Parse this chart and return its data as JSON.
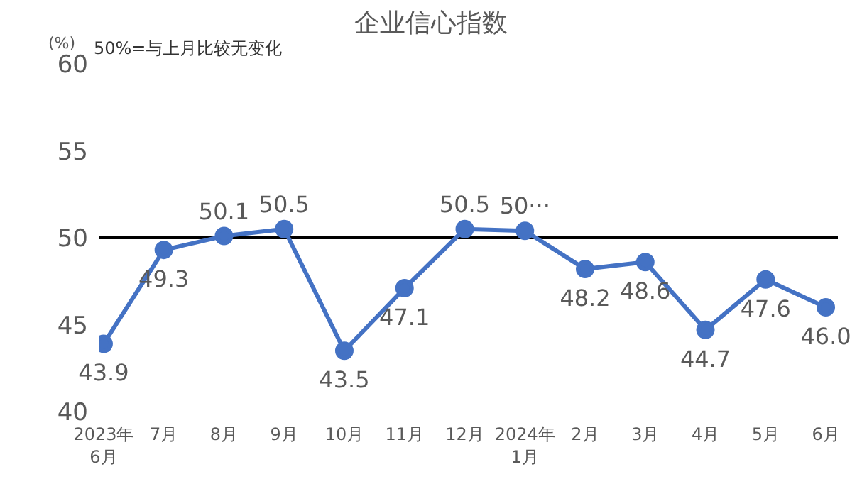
{
  "chart_data": {
    "type": "line",
    "title": "企业信心指数",
    "ylabel": "(%)",
    "annotations": [
      "50%=与上月比较无变化"
    ],
    "categories": [
      "2023年\n6月",
      "7月",
      "8月",
      "9月",
      "10月",
      "11月",
      "12月",
      "2024年\n1月",
      "2月",
      "3月",
      "4月",
      "5月",
      "6月"
    ],
    "series": [
      {
        "color": "#4472c4",
        "values": [
          43.9,
          49.3,
          50.1,
          50.5,
          43.5,
          47.1,
          50.5,
          50.4,
          48.2,
          48.6,
          44.7,
          47.6,
          46.0
        ],
        "value_labels": [
          "43.9",
          "49.3",
          "50.1",
          "50.5",
          "43.5",
          "47.1",
          "50.5",
          "50···",
          "48.2",
          "48.6",
          "44.7",
          "47.6",
          "46.0"
        ]
      }
    ],
    "ylim": [
      40,
      60
    ],
    "yticks": [
      40,
      45,
      50,
      55,
      60
    ],
    "ref_lines": [
      {
        "axis": "y",
        "value": 50,
        "color": "#000000"
      }
    ],
    "marker": "circle",
    "line_style": "solid",
    "legend": false,
    "grid": false
  }
}
